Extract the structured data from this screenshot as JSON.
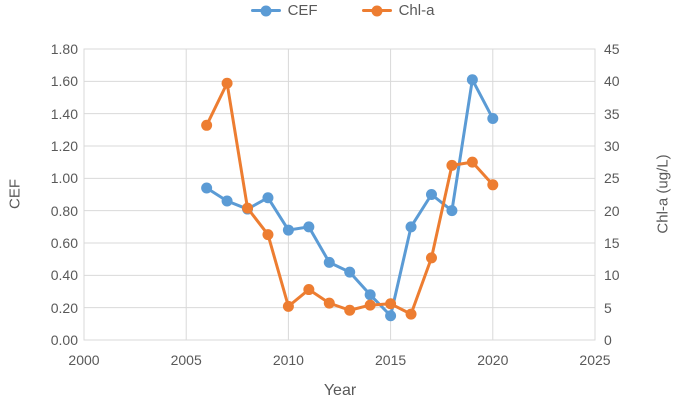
{
  "legend": {
    "items": [
      {
        "label": "CEF",
        "color": "#5B9BD5"
      },
      {
        "label": "Chl-a",
        "color": "#ED7D31"
      }
    ]
  },
  "chart_data": {
    "type": "line",
    "x": [
      2006,
      2007,
      2008,
      2009,
      2010,
      2011,
      2012,
      2013,
      2014,
      2015,
      2016,
      2017,
      2018,
      2019,
      2020
    ],
    "series": [
      {
        "name": "CEF",
        "axis": "left",
        "color": "#5B9BD5",
        "values": [
          0.94,
          0.86,
          0.81,
          0.88,
          0.68,
          0.7,
          0.48,
          0.42,
          0.28,
          0.15,
          0.7,
          0.9,
          0.8,
          1.61,
          1.37
        ]
      },
      {
        "name": "Chl-a",
        "axis": "right",
        "color": "#ED7D31",
        "values": [
          33.2,
          39.7,
          20.4,
          16.3,
          5.2,
          7.8,
          5.7,
          4.6,
          5.4,
          5.6,
          4.0,
          12.7,
          27.0,
          27.5,
          24.0
        ]
      }
    ],
    "xlabel": "Year",
    "ylabel_left": "CEF",
    "ylabel_right": "Chl-a (ug/L)",
    "x_ticks": [
      "2000",
      "2005",
      "2010",
      "2015",
      "2020",
      "2025"
    ],
    "x_range": [
      2000,
      2025
    ],
    "y_left_ticks": [
      "0.00",
      "0.20",
      "0.40",
      "0.60",
      "0.80",
      "1.00",
      "1.20",
      "1.40",
      "1.60",
      "1.80"
    ],
    "y_left_range": [
      0,
      1.8
    ],
    "y_right_ticks": [
      "0",
      "5",
      "10",
      "15",
      "20",
      "25",
      "30",
      "35",
      "40",
      "45"
    ],
    "y_right_range": [
      0,
      45
    ],
    "grid": true,
    "legend_position": "top",
    "gridline_color": "#D9D9D9",
    "tick_color": "#595959",
    "marker_style": "circle"
  }
}
